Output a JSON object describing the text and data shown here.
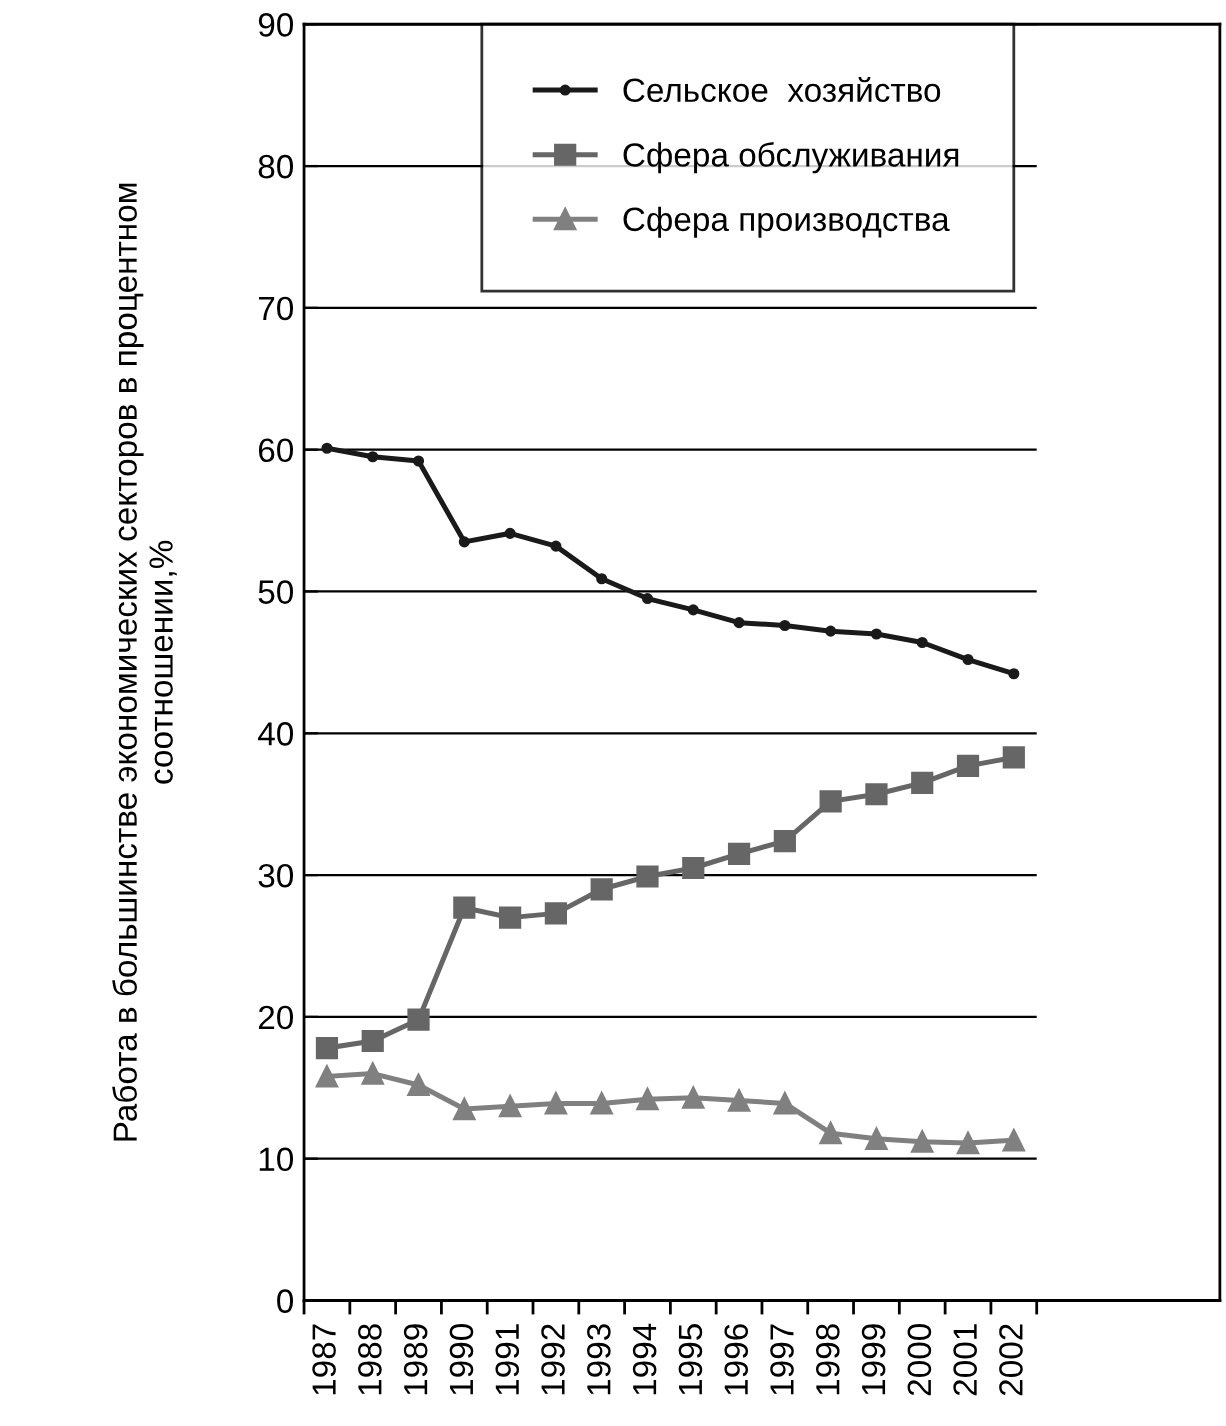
{
  "chart_data": {
    "type": "line",
    "ylabel": "Работа в большинстве экономических секторов в процентном\nсоотношении,%",
    "categories": [
      "1987",
      "1988",
      "1989",
      "1990",
      "1991",
      "1992",
      "1993",
      "1994",
      "1995",
      "1996",
      "1997",
      "1998",
      "1999",
      "2000",
      "2001",
      "2002"
    ],
    "series": [
      {
        "name": "Сельское  хозяйство",
        "color": "#1a1a1a",
        "marker": "circle",
        "values": [
          60.1,
          59.5,
          59.2,
          53.5,
          54.1,
          53.2,
          50.9,
          49.5,
          48.7,
          47.8,
          47.6,
          47.2,
          47.0,
          46.4,
          45.2,
          44.2
        ]
      },
      {
        "name": "Сфера обслуживания",
        "color": "#666666",
        "marker": "square",
        "values": [
          17.8,
          18.3,
          19.8,
          27.7,
          27.0,
          27.3,
          29.0,
          29.9,
          30.5,
          31.5,
          32.4,
          35.2,
          35.7,
          36.5,
          37.7,
          38.3
        ]
      },
      {
        "name": "Сфера производства",
        "color": "#808080",
        "marker": "triangle",
        "values": [
          15.8,
          16.0,
          15.2,
          13.5,
          13.7,
          13.9,
          13.9,
          14.2,
          14.3,
          14.1,
          13.9,
          11.8,
          11.4,
          11.2,
          11.1,
          11.3
        ]
      }
    ],
    "ylim": [
      0,
      90
    ],
    "yticks": [
      0,
      10,
      20,
      30,
      40,
      50,
      60,
      70,
      80,
      90
    ],
    "grid": "y",
    "legend": "top right",
    "line_style": "solid"
  }
}
